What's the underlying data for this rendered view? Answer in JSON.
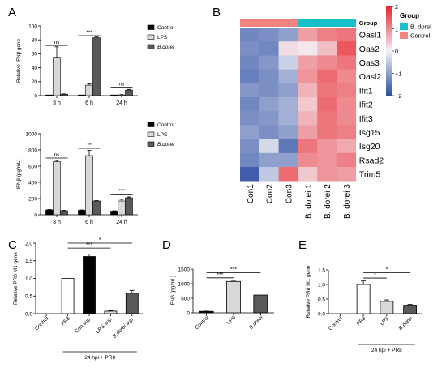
{
  "panels": {
    "A": "A",
    "B": "B",
    "C": "C",
    "D": "D",
    "E": "E"
  },
  "colors": {
    "black": "#000000",
    "white": "#ffffff",
    "light_gray": "#d9d9d9",
    "dark_gray": "#595959",
    "heat_low": "#2c4ea3",
    "heat_mid": "#f2f1f7",
    "heat_high": "#e8242a",
    "group_bdorei": "#17bfc8",
    "group_control": "#f48480"
  },
  "chart_data": [
    {
      "id": "A1",
      "type": "bar",
      "categories": [
        "3 h",
        "6 h",
        "24 h"
      ],
      "series": [
        {
          "name": "Control",
          "values": [
            1,
            1,
            1
          ],
          "errors": [
            0,
            0,
            0
          ]
        },
        {
          "name": "LPS",
          "values": [
            55,
            15,
            1
          ],
          "errors": [
            15,
            2,
            0.5
          ]
        },
        {
          "name": "B.dorei",
          "values": [
            2,
            83,
            8
          ],
          "errors": [
            0.5,
            1,
            1
          ]
        }
      ],
      "ylabel": "Relative IFNβ gene",
      "ylim": [
        0,
        100
      ],
      "yticks": [
        "0",
        "20",
        "40",
        "60",
        "80",
        "100"
      ],
      "legend": [
        "Control",
        "LPS",
        "B.dorei"
      ],
      "legend_position": "right",
      "annotations": [
        "ns",
        "***",
        "ns"
      ]
    },
    {
      "id": "A2",
      "type": "bar",
      "categories": [
        "3 h",
        "6 h",
        "24 h"
      ],
      "series": [
        {
          "name": "Control",
          "values": [
            60,
            55,
            45
          ],
          "errors": [
            5,
            5,
            5
          ]
        },
        {
          "name": "LPS",
          "values": [
            655,
            730,
            170
          ],
          "errors": [
            15,
            65,
            20
          ]
        },
        {
          "name": "B.dorei",
          "values": [
            50,
            170,
            210
          ],
          "errors": [
            5,
            5,
            10
          ]
        }
      ],
      "ylabel": "IFNβ (pg/mL)",
      "ylim": [
        0,
        1000
      ],
      "yticks": [
        "0",
        "200",
        "400",
        "600",
        "800",
        "1000"
      ],
      "legend": [
        "Control",
        "LPS",
        "B.dorei"
      ],
      "legend_position": "right",
      "annotations": [
        "ns",
        "**",
        "***"
      ]
    },
    {
      "id": "B",
      "type": "heatmap",
      "rows": [
        "Oasl1",
        "Oas2",
        "Oas3",
        "Oasl2",
        "Ifit1",
        "Ifit2",
        "Ifit3",
        "Isg15",
        "Isg20",
        "Rsad2",
        "Trim5"
      ],
      "columns": [
        "Con1",
        "Con2",
        "Con3",
        "B. dorei 1",
        "B. dorei 2",
        "B. dorei 3"
      ],
      "values": [
        [
          -1.3,
          -1.2,
          -1.0,
          0.8,
          1.1,
          1.2
        ],
        [
          -1.2,
          -1.3,
          0.2,
          0.1,
          0.5,
          1.5
        ],
        [
          -1.3,
          -1.1,
          -0.4,
          0.8,
          1.0,
          1.2
        ],
        [
          -1.4,
          -1.2,
          -0.8,
          0.9,
          1.3,
          1.0
        ],
        [
          -1.1,
          -1.2,
          -1.0,
          0.6,
          1.2,
          1.1
        ],
        [
          -1.3,
          -1.0,
          -0.8,
          0.4,
          1.3,
          1.0
        ],
        [
          -1.2,
          -1.1,
          -0.8,
          0.6,
          1.2,
          1.0
        ],
        [
          -1.0,
          -1.2,
          -1.0,
          0.8,
          1.2,
          1.1
        ],
        [
          -1.2,
          -0.3,
          -1.5,
          1.2,
          0.9,
          0.7
        ],
        [
          -1.3,
          -1.0,
          -1.0,
          1.0,
          0.9,
          1.1
        ],
        [
          -1.8,
          -0.5,
          1.3,
          0.4,
          0.9,
          0.8
        ]
      ],
      "groups": [
        "Control",
        "Control",
        "Control",
        "B. dorei",
        "B. dorei",
        "B. dorei"
      ],
      "group_label": "Group",
      "group_legend": [
        "B. dorei",
        "Control"
      ],
      "scale": [
        -2,
        2
      ],
      "scale_ticks": [
        "2",
        "1",
        "0",
        "−1",
        "−2"
      ]
    },
    {
      "id": "C",
      "type": "bar",
      "categories": [
        "Control",
        "PR8",
        "Con sup.",
        "LPS sup.",
        "B.dorei sup."
      ],
      "values": [
        0,
        1.0,
        1.62,
        0.07,
        0.58
      ],
      "errors": [
        0,
        0,
        0.07,
        0.02,
        0.08
      ],
      "fills": [
        "white",
        "white",
        "black",
        "light_gray",
        "dark_gray"
      ],
      "ylabel": "Relative PR8 M1 gene",
      "ylim": [
        0,
        2.0
      ],
      "yticks": [
        "0.0",
        "0.5",
        "1.0",
        "1.5",
        "2.0"
      ],
      "group_label": "24 hpi + PR8",
      "annotations": [
        "***",
        "*"
      ]
    },
    {
      "id": "D",
      "type": "bar",
      "categories": [
        "Control",
        "LPS",
        "B.dorei"
      ],
      "values": [
        50,
        1075,
        610
      ],
      "errors": [
        8,
        12,
        0
      ],
      "fills": [
        "black",
        "light_gray",
        "dark_gray"
      ],
      "ylabel": "IFNβ (pg/mL)",
      "ylim": [
        0,
        1500
      ],
      "yticks": [
        "0",
        "500",
        "1000",
        "1500"
      ],
      "annotations": [
        "***",
        "***"
      ]
    },
    {
      "id": "E",
      "type": "bar",
      "categories": [
        "Control",
        "PR8",
        "LPS",
        "B.dorei"
      ],
      "values": [
        0,
        1.0,
        0.42,
        0.29
      ],
      "errors": [
        0,
        0.12,
        0.05,
        0.03
      ],
      "fills": [
        "white",
        "white",
        "light_gray",
        "dark_gray"
      ],
      "ylabel": "Relative PR8 M1 gene",
      "ylim": [
        0,
        1.5
      ],
      "yticks": [
        "0.0",
        "0.5",
        "1.0",
        "1.5"
      ],
      "group_label": "24 hpi + PR8",
      "annotations": [
        "*",
        "*"
      ]
    }
  ]
}
